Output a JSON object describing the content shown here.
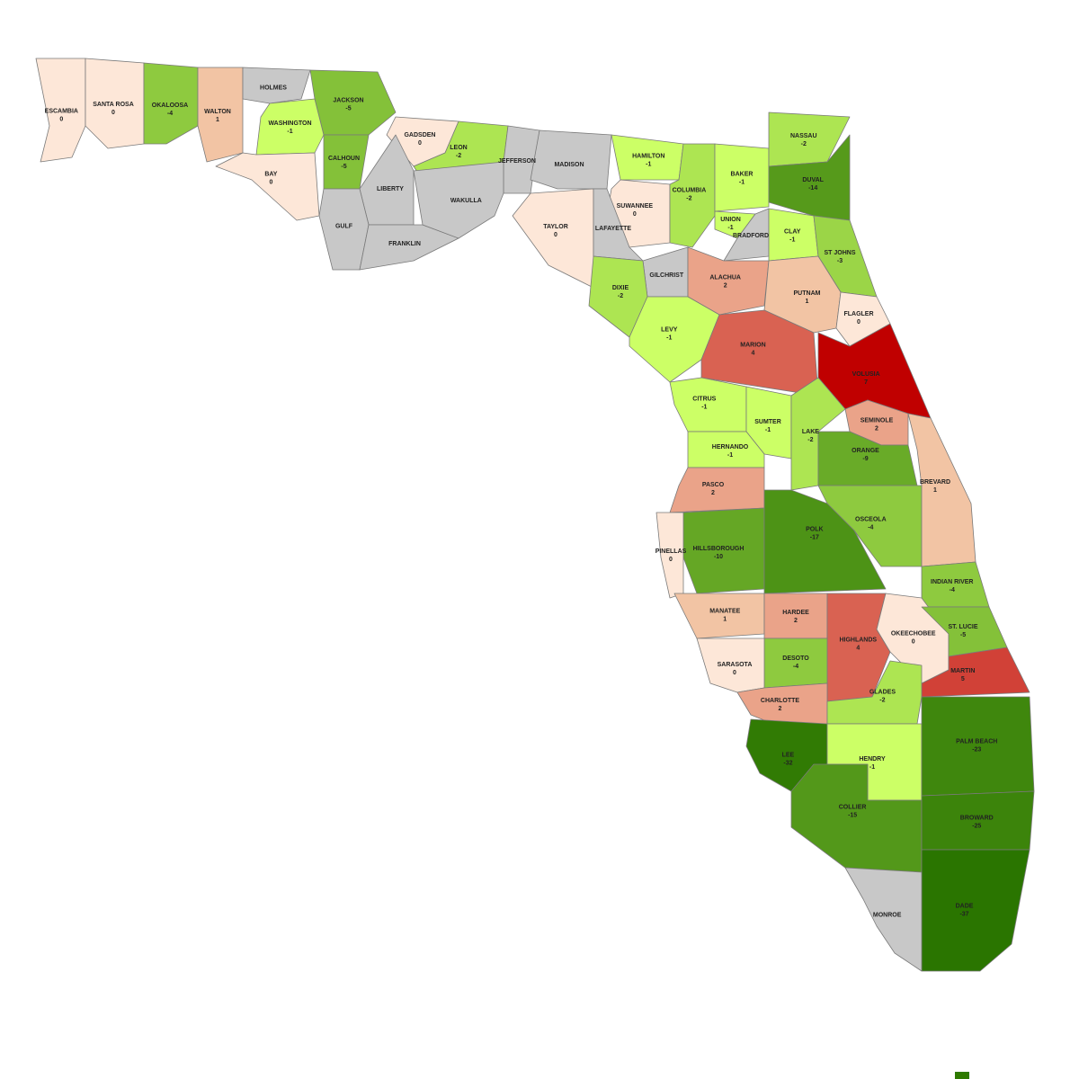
{
  "map": {
    "counties": [
      {
        "name": "ESCAMBIA",
        "value": 0
      },
      {
        "name": "SANTA ROSA",
        "value": 0
      },
      {
        "name": "OKALOOSA",
        "value": -4
      },
      {
        "name": "WALTON",
        "value": 1
      },
      {
        "name": "HOLMES"
      },
      {
        "name": "JACKSON",
        "value": -5
      },
      {
        "name": "WASHINGTON",
        "value": -1
      },
      {
        "name": "BAY",
        "value": 0
      },
      {
        "name": "CALHOUN",
        "value": -5
      },
      {
        "name": "GADSDEN",
        "value": 0
      },
      {
        "name": "LEON",
        "value": -2
      },
      {
        "name": "JEFFERSON"
      },
      {
        "name": "MADISON"
      },
      {
        "name": "HAMILTON",
        "value": -1
      },
      {
        "name": "SUWANNEE",
        "value": 0
      },
      {
        "name": "COLUMBIA",
        "value": -2
      },
      {
        "name": "BAKER",
        "value": -1
      },
      {
        "name": "NASSAU",
        "value": -2
      },
      {
        "name": "DUVAL",
        "value": -14
      },
      {
        "name": "UNION",
        "value": -1
      },
      {
        "name": "BRADFORD"
      },
      {
        "name": "CLAY",
        "value": -1
      },
      {
        "name": "ST JOHNS",
        "value": -3
      },
      {
        "name": "LIBERTY"
      },
      {
        "name": "GULF"
      },
      {
        "name": "FRANKLIN"
      },
      {
        "name": "WAKULLA"
      },
      {
        "name": "TAYLOR",
        "value": 0
      },
      {
        "name": "LAFAYETTE"
      },
      {
        "name": "GILCHRIST"
      },
      {
        "name": "DIXIE",
        "value": -2
      },
      {
        "name": "ALACHUA",
        "value": 2
      },
      {
        "name": "PUTNAM",
        "value": 1
      },
      {
        "name": "FLAGLER",
        "value": 0
      },
      {
        "name": "LEVY",
        "value": -1
      },
      {
        "name": "MARION",
        "value": 4
      },
      {
        "name": "VOLUSIA",
        "value": 7
      },
      {
        "name": "CITRUS",
        "value": -1
      },
      {
        "name": "SUMTER",
        "value": -1
      },
      {
        "name": "LAKE",
        "value": -2
      },
      {
        "name": "SEMINOLE",
        "value": 2
      },
      {
        "name": "HERNANDO",
        "value": -1
      },
      {
        "name": "ORANGE",
        "value": -9
      },
      {
        "name": "PASCO",
        "value": 2
      },
      {
        "name": "OSCEOLA",
        "value": -4
      },
      {
        "name": "BREVARD",
        "value": 1
      },
      {
        "name": "HILLSBOROUGH",
        "value": -10
      },
      {
        "name": "POLK",
        "value": -17
      },
      {
        "name": "PINELLAS",
        "value": 0
      },
      {
        "name": "INDIAN RIVER",
        "value": -4
      },
      {
        "name": "MANATEE",
        "value": 1
      },
      {
        "name": "HARDEE",
        "value": 2
      },
      {
        "name": "HIGHLANDS",
        "value": 4
      },
      {
        "name": "OKEECHOBEE",
        "value": 0
      },
      {
        "name": "ST. LUCIE",
        "value": -5
      },
      {
        "name": "MARTIN",
        "value": 5
      },
      {
        "name": "DESOTO",
        "value": -4
      },
      {
        "name": "SARASOTA",
        "value": 0
      },
      {
        "name": "CHARLOTTE",
        "value": 2
      },
      {
        "name": "GLADES",
        "value": -2
      },
      {
        "name": "LEE",
        "value": -32
      },
      {
        "name": "HENDRY",
        "value": -1
      },
      {
        "name": "PALM BEACH",
        "value": -23
      },
      {
        "name": "COLLIER",
        "value": -15
      },
      {
        "name": "BROWARD",
        "value": -25
      },
      {
        "name": "DADE",
        "value": -37
      },
      {
        "name": "MONROE"
      }
    ]
  }
}
